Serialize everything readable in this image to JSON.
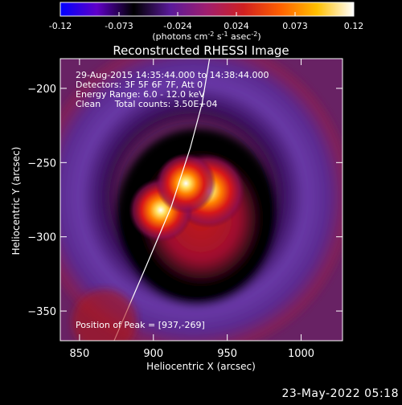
{
  "chart_data": {
    "type": "heatmap",
    "title": "Reconstructed RHESSI Image",
    "xlabel": "Heliocentric X (arcsec)",
    "ylabel": "Heliocentric Y (arcsec)",
    "xlim": [
      837,
      1028
    ],
    "ylim": [
      -370,
      -180
    ],
    "x_ticks": [
      850,
      900,
      950,
      1000
    ],
    "y_ticks": [
      -200,
      -250,
      -300,
      -350
    ],
    "colorbar": {
      "range": [
        -0.12,
        0.12
      ],
      "ticks": [
        "-0.12",
        "-0.073",
        "-0.024",
        "0.024",
        "0.073",
        "0.12"
      ],
      "unit_parts": [
        "(photons cm",
        "-2",
        " s",
        "-1",
        " asec",
        "-2",
        ")"
      ],
      "colors": [
        "#0000ff",
        "#6000c8",
        "#000000",
        "#5a1a9a",
        "#a01e6e",
        "#d02020",
        "#ff6000",
        "#ffc000",
        "#ffffff"
      ]
    },
    "annotations": [
      "29-Aug-2015 14:35:44.000 to 14:38:44.000",
      "Detectors: 3F 5F 6F 7F, Att 0",
      "Energy Range: 6.0 - 12.0 keV",
      "Clean     Total counts: 3.50E+04"
    ],
    "peak_label": "Position of Peak = [937,-269]",
    "peak": [
      937,
      -269
    ],
    "sources": [
      {
        "x": 937,
        "y": -269,
        "intensity": 0.12
      },
      {
        "x": 905,
        "y": -282,
        "intensity": 0.09
      },
      {
        "x": 922,
        "y": -264,
        "intensity": 0.08
      }
    ],
    "limb_curve": [
      [
        873,
        -371
      ],
      [
        895,
        -320
      ],
      [
        912,
        -280
      ],
      [
        925,
        -240
      ],
      [
        933,
        -210
      ],
      [
        938,
        -180
      ]
    ]
  },
  "footer": {
    "date": "23-May-2022 05:18"
  }
}
